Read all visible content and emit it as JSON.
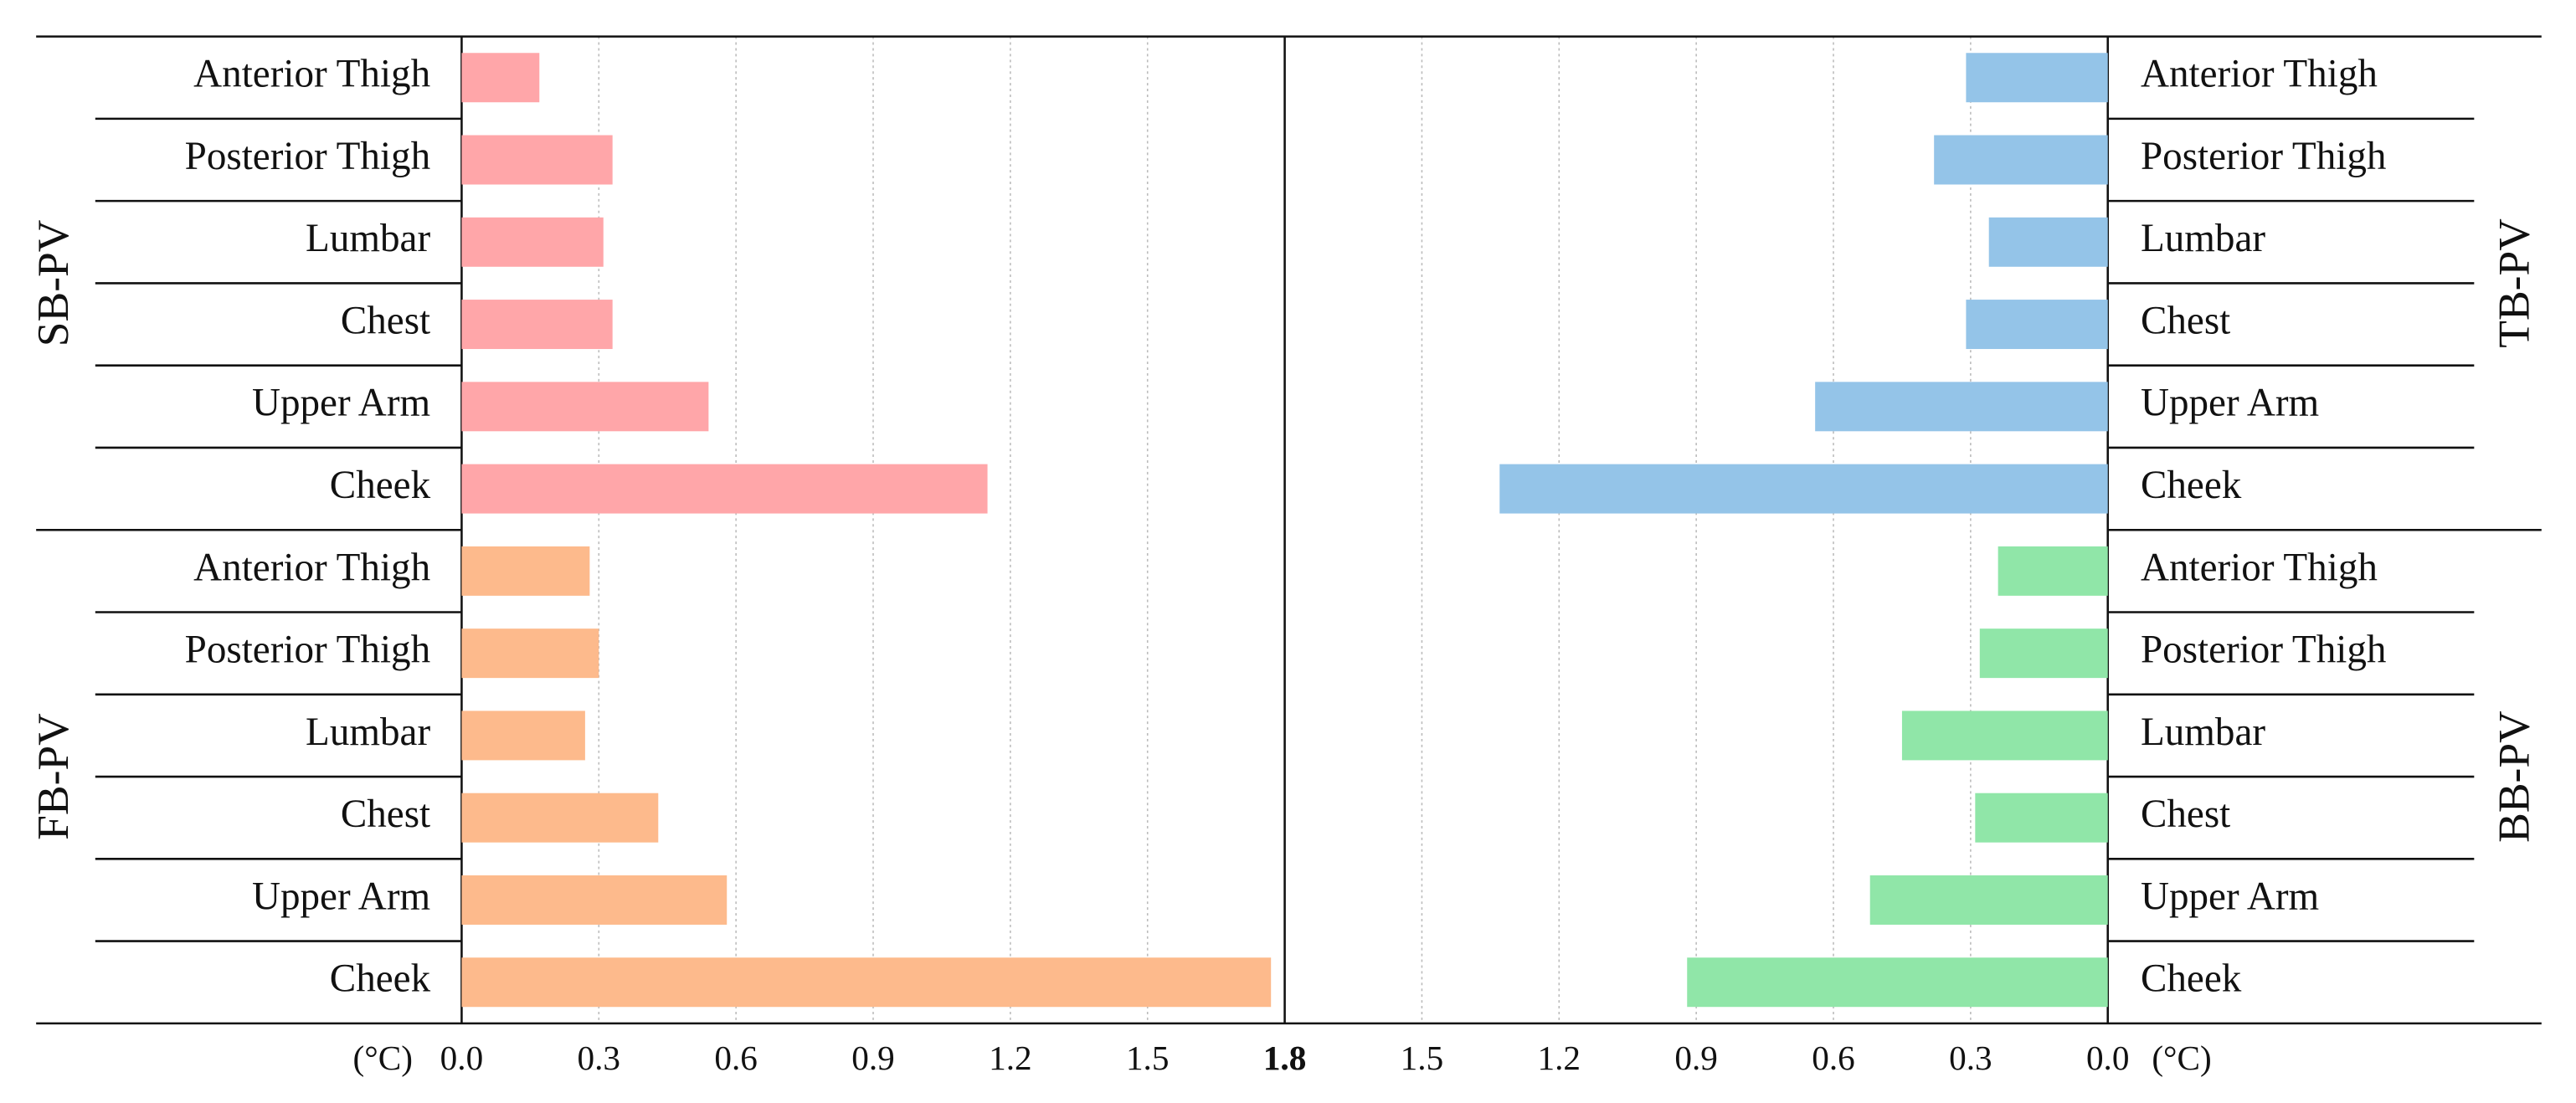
{
  "chart_data": {
    "type": "bar",
    "orientation": "horizontal",
    "layout": "butterfly",
    "categories": [
      "Anterior Thigh",
      "Posterior Thigh",
      "Lumbar",
      "Chest",
      "Upper Arm",
      "Cheek"
    ],
    "series": [
      {
        "name": "SB-PV",
        "color": "#ffa6a9",
        "side": "left",
        "row": "top",
        "values": [
          0.17,
          0.33,
          0.31,
          0.33,
          0.54,
          1.15
        ]
      },
      {
        "name": "FB-PV",
        "color": "#fdba8c",
        "side": "left",
        "row": "bottom",
        "values": [
          0.28,
          0.3,
          0.27,
          0.43,
          0.58,
          1.77
        ]
      },
      {
        "name": "TB-PV",
        "color": "#94c4e8",
        "side": "right",
        "row": "top",
        "values": [
          0.31,
          0.38,
          0.26,
          0.31,
          0.64,
          1.33
        ]
      },
      {
        "name": "BB-PV",
        "color": "#90e6a8",
        "side": "right",
        "row": "bottom",
        "values": [
          0.24,
          0.28,
          0.45,
          0.29,
          0.52,
          0.92
        ]
      }
    ],
    "xlim": [
      0,
      1.8
    ],
    "xticks": [
      {
        "value": 0,
        "label": "0.0"
      },
      0.3,
      0.6,
      0.9,
      1.2,
      1.5,
      1.8
    ],
    "unit": "(°C)",
    "grid": true
  }
}
